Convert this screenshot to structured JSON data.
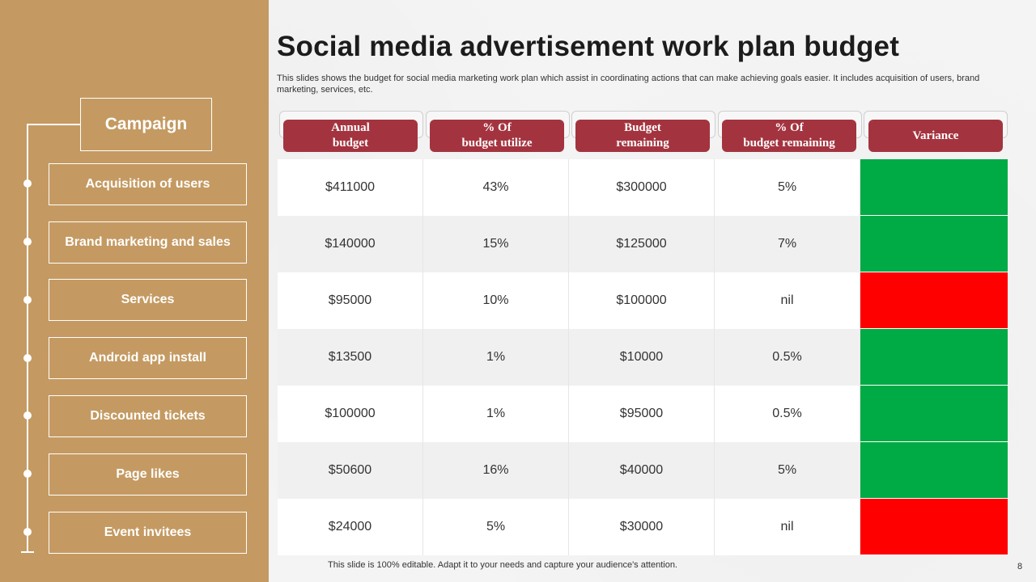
{
  "title": "Social media advertisement work plan budget",
  "subtitle": "This slides shows the budget for social media marketing work plan which assist in  coordinating actions that can make achieving goals easier. It includes acquisition of users, brand marketing, services, etc.",
  "sidebar": {
    "heading": "Campaign",
    "items": [
      "Acquisition of users",
      "Brand marketing and sales",
      "Services",
      "Android app install",
      "Discounted tickets",
      "Page likes",
      "Event invitees"
    ]
  },
  "table": {
    "headers": [
      "Annual\nbudget",
      "% Of\nbudget utilize",
      "Budget\nremaining",
      "% Of\nbudget remaining",
      "Variance"
    ],
    "rows": [
      {
        "annual": "$411000",
        "utilize": "43%",
        "remaining": "$300000",
        "pct_remaining": "5%",
        "variance": "green"
      },
      {
        "annual": "$140000",
        "utilize": "15%",
        "remaining": "$125000",
        "pct_remaining": "7%",
        "variance": "green"
      },
      {
        "annual": "$95000",
        "utilize": "10%",
        "remaining": "$100000",
        "pct_remaining": "nil",
        "variance": "red"
      },
      {
        "annual": "$13500",
        "utilize": "1%",
        "remaining": "$10000",
        "pct_remaining": "0.5%",
        "variance": "green"
      },
      {
        "annual": "$100000",
        "utilize": "1%",
        "remaining": "$95000",
        "pct_remaining": "0.5%",
        "variance": "green"
      },
      {
        "annual": "$50600",
        "utilize": "16%",
        "remaining": "$40000",
        "pct_remaining": "5%",
        "variance": "green"
      },
      {
        "annual": "$24000",
        "utilize": "5%",
        "remaining": "$30000",
        "pct_remaining": "nil",
        "variance": "red"
      }
    ]
  },
  "colors": {
    "sidebar": "#c49a62",
    "header_pill": "#a3343f",
    "variance_green": "#00aa44",
    "variance_red": "#ff0000",
    "row_alt": "#f0f0f0",
    "row_base": "#ffffff"
  },
  "footer": "This slide is 100% editable. Adapt it to your needs and capture your audience's attention.",
  "page_number": "8"
}
